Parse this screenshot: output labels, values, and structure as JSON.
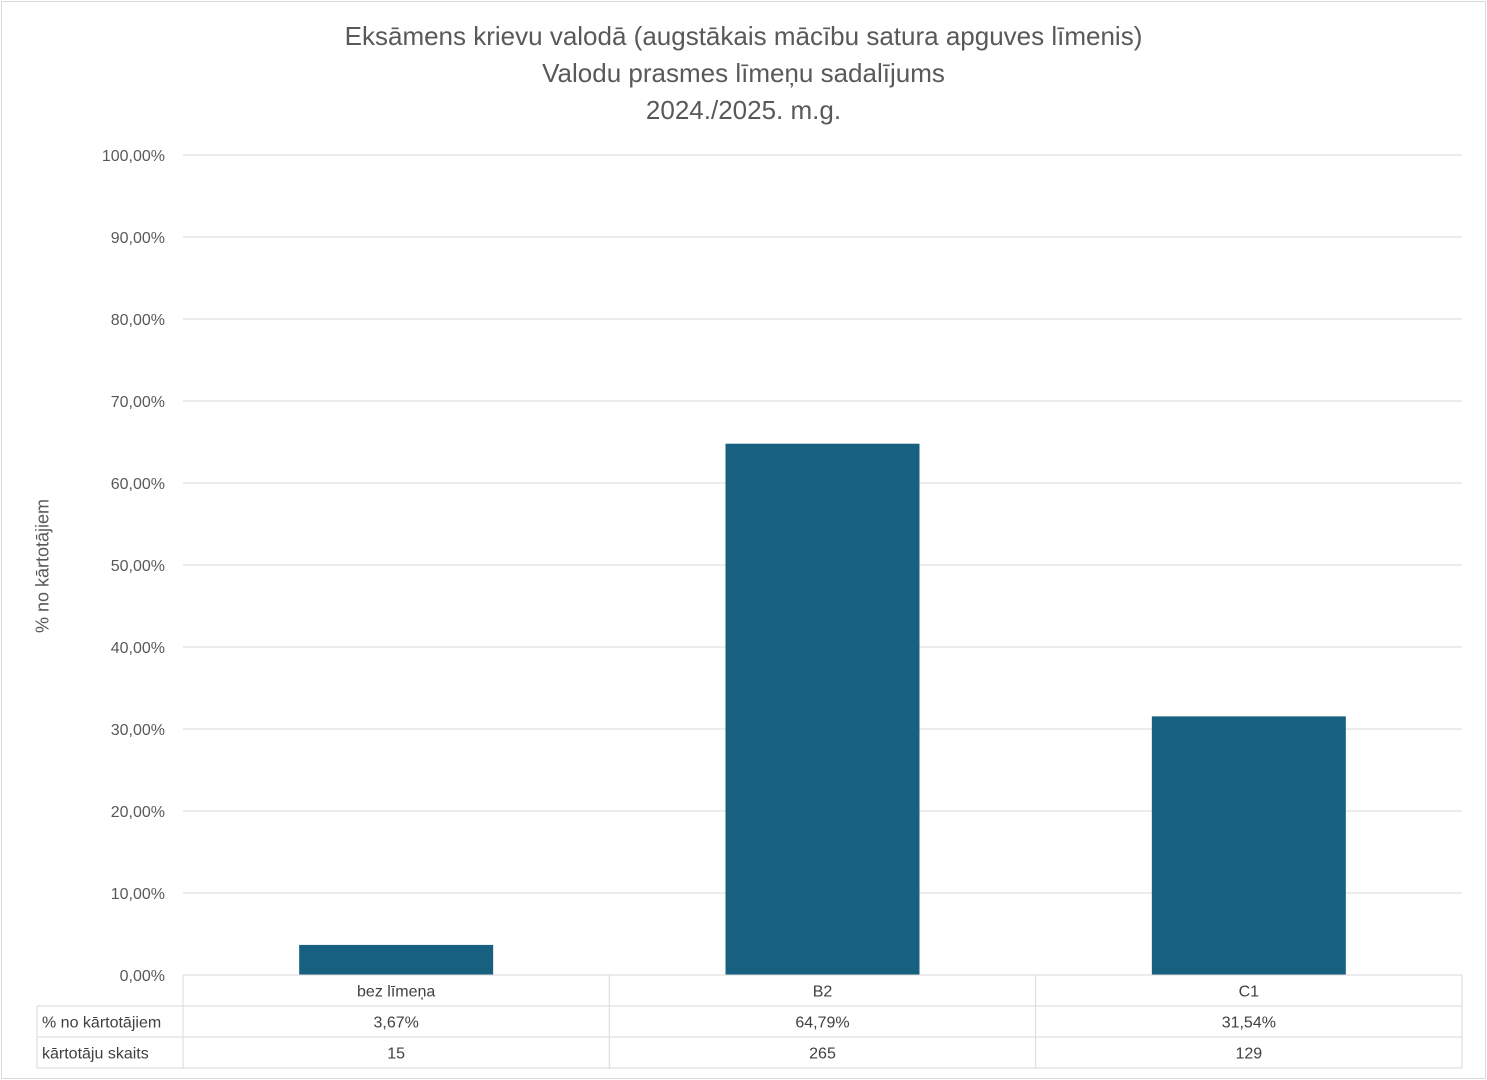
{
  "chart_data": {
    "type": "bar",
    "title": [
      "Eksāmens krievu valodā (augstākais mācību satura apguves līmenis)",
      "Valodu prasmes līmeņu sadalījums",
      "2024./2025. m.g."
    ],
    "ylabel": "% no kārtotājiem",
    "ylim": [
      0,
      100
    ],
    "yticks": [
      "0,00%",
      "10,00%",
      "20,00%",
      "30,00%",
      "40,00%",
      "50,00%",
      "60,00%",
      "70,00%",
      "80,00%",
      "90,00%",
      "100,00%"
    ],
    "categories": [
      "bez līmeņa",
      "B2",
      "C1"
    ],
    "values": [
      3.67,
      64.79,
      31.54
    ],
    "bar_color": "#17607f",
    "grid": true,
    "data_table": {
      "rows": [
        {
          "label": "% no kārtotājiem",
          "values": [
            "3,67%",
            "64,79%",
            "31,54%"
          ]
        },
        {
          "label": "kārtotāju skaits",
          "values": [
            "15",
            "265",
            "129"
          ]
        }
      ]
    }
  }
}
